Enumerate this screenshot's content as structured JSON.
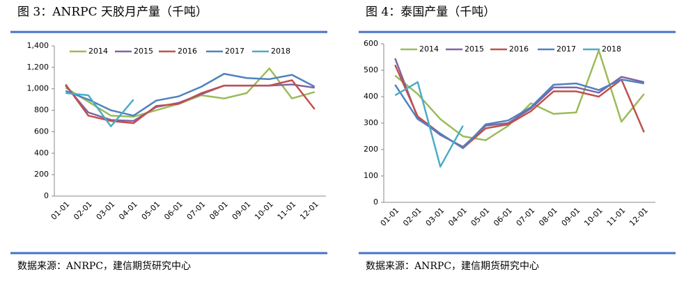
{
  "chart_data": [
    {
      "type": "line",
      "title": "图 3：ANRPC 天胶月产量（千吨）",
      "source": "数据来源：ANRPC，建信期货研究中心",
      "categories": [
        "01-01",
        "02-01",
        "03-01",
        "04-01",
        "05-01",
        "06-01",
        "07-01",
        "08-01",
        "09-01",
        "10-01",
        "11-01",
        "12-01"
      ],
      "ylim": [
        0,
        1400
      ],
      "yticks": [
        0,
        200,
        400,
        600,
        800,
        {
          "value": 1000,
          "label": "1,000"
        },
        {
          "value": 1200,
          "label": "1,200"
        },
        {
          "value": 1400,
          "label": "1,400"
        }
      ],
      "series": [
        {
          "name": "2014",
          "color": "#9bbb59",
          "values": [
            1010,
            880,
            750,
            740,
            800,
            860,
            940,
            910,
            960,
            1190,
            910,
            970
          ]
        },
        {
          "name": "2015",
          "color": "#8064a2",
          "values": [
            1030,
            780,
            710,
            700,
            830,
            870,
            950,
            1030,
            1030,
            1030,
            1040,
            1010
          ]
        },
        {
          "name": "2016",
          "color": "#c0504d",
          "values": [
            1040,
            750,
            700,
            680,
            840,
            860,
            960,
            1030,
            1030,
            1030,
            1080,
            810
          ]
        },
        {
          "name": "2017",
          "color": "#4f81bd",
          "values": [
            980,
            900,
            800,
            750,
            890,
            930,
            1020,
            1140,
            1100,
            1090,
            1130,
            1020
          ]
        },
        {
          "name": "2018",
          "color": "#4bacc6",
          "values": [
            960,
            940,
            650,
            900,
            null,
            null,
            null,
            null,
            null,
            null,
            null,
            null
          ]
        }
      ]
    },
    {
      "type": "line",
      "title": "图 4：泰国产量（千吨）",
      "source": "数据来源：ANRPC，建信期货研究中心",
      "categories": [
        "01-01",
        "02-01",
        "03-01",
        "04-01",
        "05-01",
        "06-01",
        "07-01",
        "08-01",
        "09-01",
        "10-01",
        "11-01",
        "12-01"
      ],
      "ylim": [
        0,
        600
      ],
      "yticks": [
        0,
        100,
        200,
        300,
        400,
        500,
        600
      ],
      "series": [
        {
          "name": "2014",
          "color": "#9bbb59",
          "values": [
            480,
            410,
            315,
            250,
            235,
            290,
            375,
            335,
            340,
            575,
            305,
            410
          ]
        },
        {
          "name": "2015",
          "color": "#8064a2",
          "values": [
            545,
            320,
            255,
            210,
            290,
            300,
            355,
            435,
            435,
            415,
            475,
            455
          ]
        },
        {
          "name": "2016",
          "color": "#c0504d",
          "values": [
            520,
            325,
            260,
            205,
            280,
            295,
            345,
            420,
            420,
            400,
            465,
            265
          ]
        },
        {
          "name": "2017",
          "color": "#4f81bd",
          "values": [
            445,
            315,
            260,
            205,
            295,
            310,
            360,
            445,
            450,
            425,
            465,
            450
          ]
        },
        {
          "name": "2018",
          "color": "#4bacc6",
          "values": [
            405,
            455,
            135,
            290,
            null,
            null,
            null,
            null,
            null,
            null,
            null,
            null
          ]
        }
      ]
    }
  ]
}
